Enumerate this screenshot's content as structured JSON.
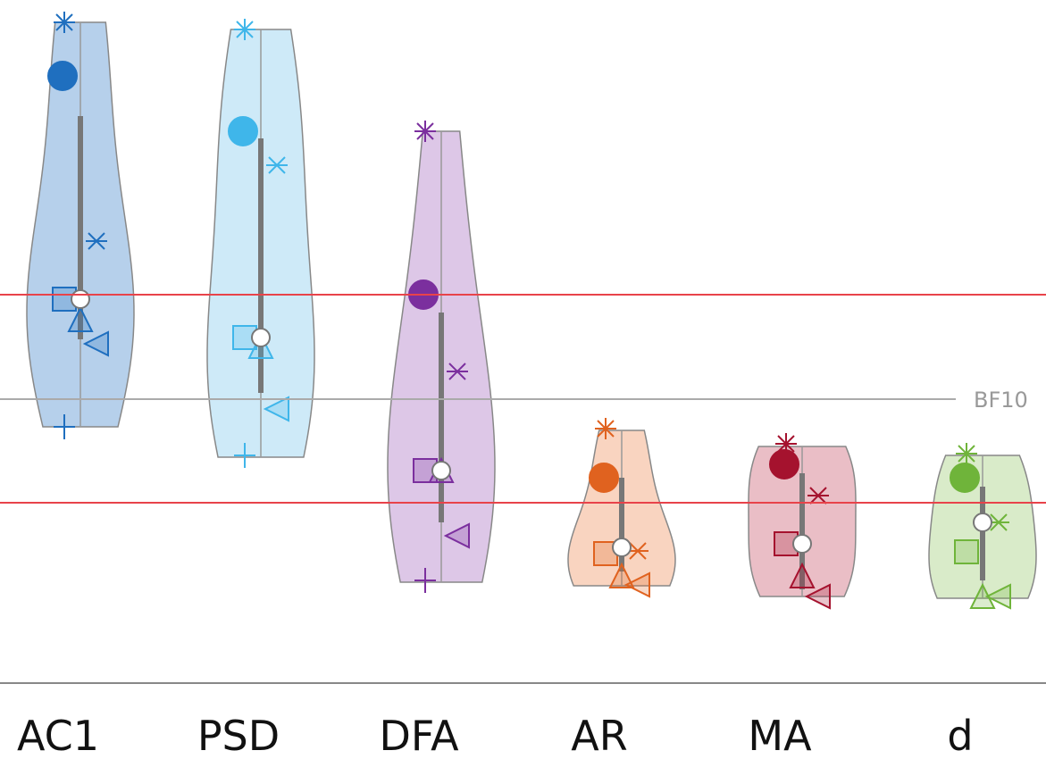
{
  "chart_data": {
    "type": "violin",
    "categories": [
      "AC1",
      "PSD",
      "DFA",
      "AR",
      "MA",
      "d"
    ],
    "ylim": [
      0,
      765
    ],
    "series": [
      {
        "name": "AC1",
        "color": "#1f6fbf",
        "fill": "#a9c8e8",
        "values": [
          740,
          680,
          495,
          430,
          407,
          380,
          287
        ],
        "median": 430,
        "box": [
          385,
          635
        ],
        "range": [
          287,
          740
        ]
      },
      {
        "name": "PSD",
        "color": "#3fb6ea",
        "fill": "#c5e6f7",
        "values": [
          732,
          618,
          580,
          387,
          377,
          307,
          255
        ],
        "median": 387,
        "box": [
          325,
          610
        ],
        "range": [
          253,
          732
        ]
      },
      {
        "name": "DFA",
        "color": "#7b2f9e",
        "fill": "#d7bde3",
        "values": [
          618,
          435,
          349,
          238,
          238,
          165,
          115
        ],
        "median": 238,
        "box": [
          180,
          415
        ],
        "range": [
          113,
          618
        ]
      },
      {
        "name": "AR",
        "color": "#e0621f",
        "fill": "#f8cdb5",
        "values": [
          285,
          230,
          148,
          145,
          120,
          110
        ],
        "median": 152,
        "box": [
          125,
          230
        ],
        "range": [
          109,
          283
        ]
      },
      {
        "name": "MA",
        "color": "#a5122e",
        "fill": "#e6b3bc",
        "values": [
          268,
          245,
          210,
          156,
          120,
          97
        ],
        "median": 156,
        "box": [
          105,
          235
        ],
        "range": [
          97,
          265
        ]
      },
      {
        "name": "d",
        "color": "#6fb43a",
        "fill": "#d2e8c0",
        "values": [
          257,
          230,
          180,
          147,
          97,
          97
        ],
        "median": 180,
        "box": [
          115,
          220
        ],
        "range": [
          95,
          255
        ]
      }
    ],
    "reference_lines": [
      {
        "value": 435,
        "color": "#e8434a"
      },
      {
        "value": 202,
        "color": "#e8434a"
      },
      {
        "value": 318,
        "color": "#aaaaaa",
        "label": "BF10"
      }
    ]
  }
}
